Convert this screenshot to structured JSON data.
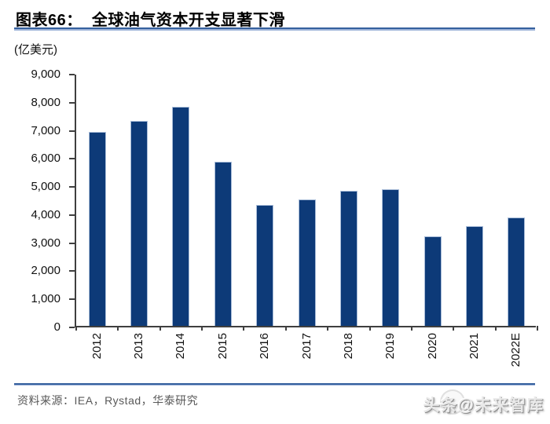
{
  "figure": {
    "title": "图表66：  全球油气资本开支显著下滑",
    "unit_label": "(亿美元)",
    "source_label": "资料来源：IEA，Rystad，华泰研究",
    "watermark_text": "头条@未来智库"
  },
  "colors": {
    "bar": "#0d3a78",
    "bar_edge": "#a8bcd8",
    "axis": "#3f3f3f",
    "rule_blue": "#35609e",
    "rule_blue_light": "#9db3d9",
    "title_text": "#000000",
    "tick_text": "#111111",
    "source_text": "#595959"
  },
  "chart_data": {
    "type": "bar",
    "title": "全球油气资本开支显著下滑",
    "figure_label": "图表66",
    "categories": [
      "2012",
      "2013",
      "2014",
      "2015",
      "2016",
      "2017",
      "2018",
      "2019",
      "2020",
      "2021",
      "2022E"
    ],
    "values": [
      6900,
      7300,
      7800,
      5850,
      4300,
      4500,
      4800,
      4850,
      3200,
      3550,
      3850
    ],
    "series_name": "全球油气资本开支",
    "xlabel": "",
    "ylabel": "(亿美元)",
    "ylim": [
      0,
      9000
    ],
    "ytick_step": 1000,
    "ytick_labels_top_down": [
      "9,000",
      "8,000",
      "7,000",
      "6,000",
      "5,000",
      "4,000",
      "3,000",
      "2,000",
      "1,000",
      "0"
    ],
    "grid": false,
    "legend": "none",
    "bar_color": "#0d3a78"
  }
}
